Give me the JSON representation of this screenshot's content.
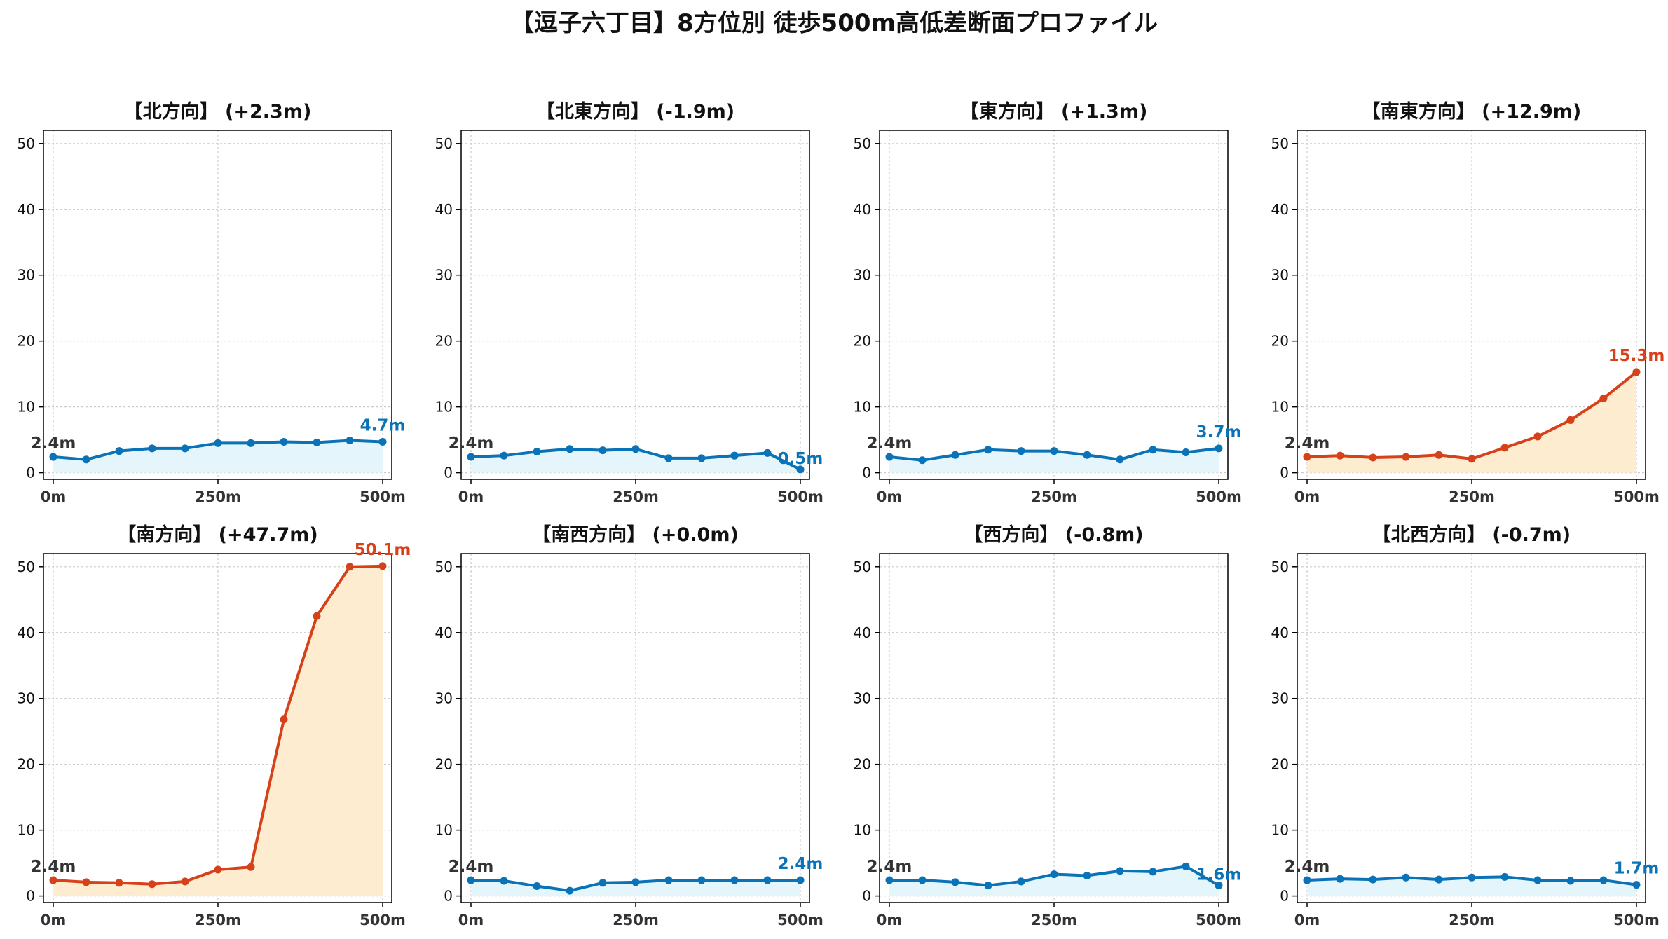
{
  "title": "【逗子六丁目】8方位別 徒歩500m高低差断面プロファイル",
  "colors": {
    "flat_line": "#0a72b6",
    "flat_fill": "#e4f5fb",
    "steep_line": "#d6411a",
    "steep_fill": "#fdecd0",
    "grid": "#cccccc",
    "axis": "#000000"
  },
  "chart_data": [
    {
      "type": "area",
      "title": "【北方向】 (+2.3m)",
      "theme": "flat",
      "x": [
        0,
        50,
        100,
        150,
        200,
        250,
        300,
        350,
        400,
        450,
        500
      ],
      "values": [
        2.4,
        2.0,
        3.3,
        3.7,
        3.7,
        4.5,
        4.5,
        4.7,
        4.6,
        4.9,
        4.7
      ],
      "start_label": "2.4m",
      "end_label": "4.7m",
      "ylim": [
        -1,
        52
      ],
      "yticks": [
        0,
        10,
        20,
        30,
        40,
        50
      ],
      "xticks": [
        0,
        250,
        500
      ],
      "xtick_labels": [
        "0m",
        "250m",
        "500m"
      ],
      "grid": true
    },
    {
      "type": "area",
      "title": "【北東方向】 (-1.9m)",
      "theme": "flat",
      "x": [
        0,
        50,
        100,
        150,
        200,
        250,
        300,
        350,
        400,
        450,
        500
      ],
      "values": [
        2.4,
        2.6,
        3.2,
        3.6,
        3.4,
        3.6,
        2.2,
        2.2,
        2.6,
        3.0,
        0.5
      ],
      "start_label": "2.4m",
      "end_label": "0.5m",
      "ylim": [
        -1,
        52
      ],
      "yticks": [
        0,
        10,
        20,
        30,
        40,
        50
      ],
      "xticks": [
        0,
        250,
        500
      ],
      "xtick_labels": [
        "0m",
        "250m",
        "500m"
      ],
      "grid": true
    },
    {
      "type": "area",
      "title": "【東方向】 (+1.3m)",
      "theme": "flat",
      "x": [
        0,
        50,
        100,
        150,
        200,
        250,
        300,
        350,
        400,
        450,
        500
      ],
      "values": [
        2.4,
        1.9,
        2.7,
        3.5,
        3.3,
        3.3,
        2.7,
        2.0,
        3.5,
        3.1,
        3.7
      ],
      "start_label": "2.4m",
      "end_label": "3.7m",
      "ylim": [
        -1,
        52
      ],
      "yticks": [
        0,
        10,
        20,
        30,
        40,
        50
      ],
      "xticks": [
        0,
        250,
        500
      ],
      "xtick_labels": [
        "0m",
        "250m",
        "500m"
      ],
      "grid": true
    },
    {
      "type": "area",
      "title": "【南東方向】 (+12.9m)",
      "theme": "steep",
      "x": [
        0,
        50,
        100,
        150,
        200,
        250,
        300,
        350,
        400,
        450,
        500
      ],
      "values": [
        2.4,
        2.6,
        2.3,
        2.4,
        2.7,
        2.1,
        3.8,
        5.5,
        8.0,
        11.3,
        15.3
      ],
      "start_label": "2.4m",
      "end_label": "15.3m",
      "ylim": [
        -1,
        52
      ],
      "yticks": [
        0,
        10,
        20,
        30,
        40,
        50
      ],
      "xticks": [
        0,
        250,
        500
      ],
      "xtick_labels": [
        "0m",
        "250m",
        "500m"
      ],
      "grid": true
    },
    {
      "type": "area",
      "title": "【南方向】 (+47.7m)",
      "theme": "steep",
      "x": [
        0,
        50,
        100,
        150,
        200,
        250,
        300,
        350,
        400,
        450,
        500
      ],
      "values": [
        2.4,
        2.1,
        2.0,
        1.8,
        2.2,
        4.0,
        4.4,
        26.8,
        42.5,
        50.0,
        50.1
      ],
      "start_label": "2.4m",
      "end_label": "50.1m",
      "ylim": [
        -1,
        52
      ],
      "yticks": [
        0,
        10,
        20,
        30,
        40,
        50
      ],
      "xticks": [
        0,
        250,
        500
      ],
      "xtick_labels": [
        "0m",
        "250m",
        "500m"
      ],
      "grid": true
    },
    {
      "type": "area",
      "title": "【南西方向】 (+0.0m)",
      "theme": "flat",
      "x": [
        0,
        50,
        100,
        150,
        200,
        250,
        300,
        350,
        400,
        450,
        500
      ],
      "values": [
        2.4,
        2.3,
        1.5,
        0.8,
        2.0,
        2.1,
        2.4,
        2.4,
        2.4,
        2.4,
        2.4
      ],
      "start_label": "2.4m",
      "end_label": "2.4m",
      "ylim": [
        -1,
        52
      ],
      "yticks": [
        0,
        10,
        20,
        30,
        40,
        50
      ],
      "xticks": [
        0,
        250,
        500
      ],
      "xtick_labels": [
        "0m",
        "250m",
        "500m"
      ],
      "grid": true
    },
    {
      "type": "area",
      "title": "【西方向】 (-0.8m)",
      "theme": "flat",
      "x": [
        0,
        50,
        100,
        150,
        200,
        250,
        300,
        350,
        400,
        450,
        500
      ],
      "values": [
        2.4,
        2.4,
        2.1,
        1.6,
        2.2,
        3.3,
        3.1,
        3.8,
        3.7,
        4.5,
        1.6
      ],
      "start_label": "2.4m",
      "end_label": "1.6m",
      "ylim": [
        -1,
        52
      ],
      "yticks": [
        0,
        10,
        20,
        30,
        40,
        50
      ],
      "xticks": [
        0,
        250,
        500
      ],
      "xtick_labels": [
        "0m",
        "250m",
        "500m"
      ],
      "grid": true
    },
    {
      "type": "area",
      "title": "【北西方向】 (-0.7m)",
      "theme": "flat",
      "x": [
        0,
        50,
        100,
        150,
        200,
        250,
        300,
        350,
        400,
        450,
        500
      ],
      "values": [
        2.4,
        2.6,
        2.5,
        2.8,
        2.5,
        2.8,
        2.9,
        2.4,
        2.3,
        2.4,
        1.7
      ],
      "start_label": "2.4m",
      "end_label": "1.7m",
      "ylim": [
        -1,
        52
      ],
      "yticks": [
        0,
        10,
        20,
        30,
        40,
        50
      ],
      "xticks": [
        0,
        250,
        500
      ],
      "xtick_labels": [
        "0m",
        "250m",
        "500m"
      ],
      "grid": true
    }
  ]
}
